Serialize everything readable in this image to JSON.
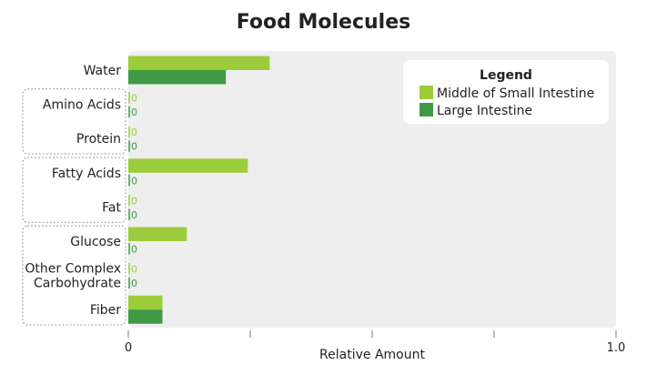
{
  "chart_data": {
    "type": "bar",
    "orientation": "horizontal",
    "title": "Food Molecules",
    "xlabel": "Relative Amount",
    "xlim": [
      0,
      1.0
    ],
    "x_tick_labels": [
      "0",
      "",
      "",
      "",
      "1.0"
    ],
    "categories": [
      "Water",
      "Amino Acids",
      "Protein",
      "Fatty Acids",
      "Fat",
      "Glucose",
      "Other Complex Carbohydrate",
      "Fiber"
    ],
    "category_groups": [
      [
        1,
        2
      ],
      [
        3,
        4
      ],
      [
        5,
        6,
        7
      ]
    ],
    "series": [
      {
        "name": "Middle of Small Intestine",
        "color": "#9ccc3c",
        "values": [
          0.29,
          0,
          0,
          0.245,
          0,
          0.12,
          0,
          0.07
        ]
      },
      {
        "name": "Large Intestine",
        "color": "#3f9a45",
        "values": [
          0.2,
          0,
          0,
          0,
          0,
          0,
          0,
          0.07
        ]
      }
    ],
    "zero_label": "0",
    "legend": {
      "title": "Legend",
      "position": "top-right"
    },
    "grid": false,
    "plot_background": "#eeeeee"
  }
}
